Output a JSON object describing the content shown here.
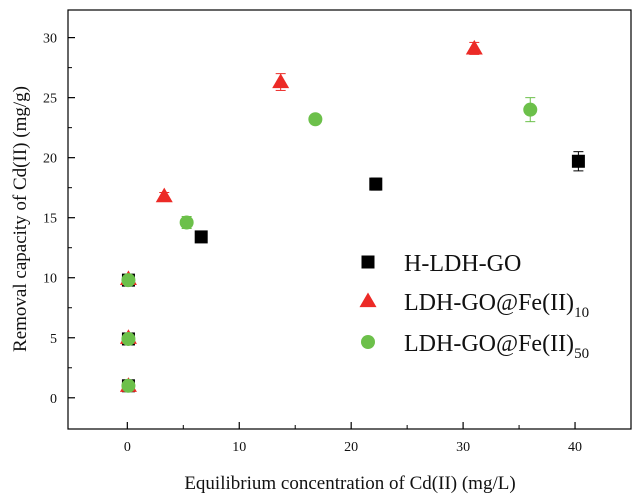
{
  "chart_data": {
    "type": "scatter",
    "xlabel": "Equilibrium concentration of Cd(II) (mg/L)",
    "ylabel": "Removal capacity of Cd(II) (mg/g)",
    "xlim": [
      -5.3,
      45
    ],
    "ylim": [
      -2.6,
      32.3
    ],
    "xticks": [
      0,
      10,
      20,
      30,
      40
    ],
    "yticks": [
      0,
      5,
      10,
      15,
      20,
      25,
      30
    ],
    "grid": false,
    "legend_position": "center-right",
    "series": [
      {
        "name": "H-LDH-GO",
        "name_base": "H-LDH-GO",
        "name_sub": "",
        "marker": "square",
        "color": "#000000",
        "points": [
          {
            "x": 0.1,
            "y": 1.0,
            "err": 0.2
          },
          {
            "x": 0.1,
            "y": 4.9,
            "err": 0.2
          },
          {
            "x": 0.1,
            "y": 9.8,
            "err": 0.2
          },
          {
            "x": 6.6,
            "y": 13.4,
            "err": 0.2
          },
          {
            "x": 22.2,
            "y": 17.8,
            "err": 0.5
          },
          {
            "x": 40.3,
            "y": 19.7,
            "err": 0.8
          }
        ]
      },
      {
        "name": "LDH-GO@Fe(II)10",
        "name_base": "LDH-GO@Fe(II)",
        "name_sub": "10",
        "marker": "triangle",
        "color": "#ec2a26",
        "points": [
          {
            "x": 0.1,
            "y": 1.0,
            "err": 0.2
          },
          {
            "x": 0.1,
            "y": 5.0,
            "err": 0.2
          },
          {
            "x": 0.1,
            "y": 9.9,
            "err": 0.2
          },
          {
            "x": 3.3,
            "y": 16.8,
            "err": 0.3
          },
          {
            "x": 13.7,
            "y": 26.3,
            "err": 0.7
          },
          {
            "x": 31.0,
            "y": 29.1,
            "err": 0.5
          }
        ]
      },
      {
        "name": "LDH-GO@Fe(II)50",
        "name_base": "LDH-GO@Fe(II)",
        "name_sub": "50",
        "marker": "circle",
        "color": "#6cc04a",
        "points": [
          {
            "x": 0.1,
            "y": 1.0,
            "err": 0.2
          },
          {
            "x": 0.1,
            "y": 4.9,
            "err": 0.2
          },
          {
            "x": 0.1,
            "y": 9.8,
            "err": 0.2
          },
          {
            "x": 5.3,
            "y": 14.6,
            "err": 0.5
          },
          {
            "x": 16.8,
            "y": 23.2,
            "err": 0.2
          },
          {
            "x": 36.0,
            "y": 24.0,
            "err": 1.0
          }
        ]
      }
    ]
  }
}
